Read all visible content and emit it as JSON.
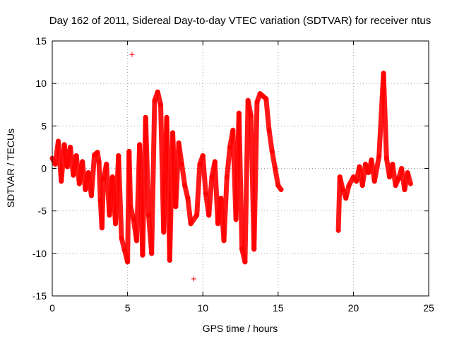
{
  "chart_data": {
    "type": "scatter",
    "title": "Day 162 of 2011, Sidereal Day-to-day VTEC variation (SDTVAR) for receiver ntus",
    "xlabel": "GPS time / hours",
    "ylabel": "SDTVAR / TECUs",
    "xlim": [
      0,
      25
    ],
    "ylim": [
      -15,
      15
    ],
    "xticks": [
      0,
      5,
      10,
      15,
      20,
      25
    ],
    "yticks": [
      -15,
      -10,
      -5,
      0,
      5,
      10,
      15
    ],
    "xtick_labels": [
      "0",
      "5",
      "10",
      "15",
      "20",
      "25"
    ],
    "ytick_labels": [
      "-15",
      "-10",
      "-5",
      "0",
      "5",
      "10",
      "15"
    ],
    "grid": true,
    "marker": "+",
    "color": "#ff0000",
    "series": [
      {
        "name": "ntus",
        "points": [
          [
            0.0,
            1.2
          ],
          [
            0.2,
            0.5
          ],
          [
            0.4,
            3.2
          ],
          [
            0.6,
            -1.5
          ],
          [
            0.8,
            2.8
          ],
          [
            1.0,
            0.2
          ],
          [
            1.2,
            2.5
          ],
          [
            1.4,
            -0.8
          ],
          [
            1.6,
            1.5
          ],
          [
            1.8,
            -1.8
          ],
          [
            2.0,
            0.8
          ],
          [
            2.2,
            -2.5
          ],
          [
            2.4,
            -0.5
          ],
          [
            2.6,
            -3.2
          ],
          [
            2.8,
            1.6
          ],
          [
            3.0,
            1.9
          ],
          [
            3.1,
            0.8
          ],
          [
            3.2,
            -3.8
          ],
          [
            3.3,
            -7.0
          ],
          [
            3.4,
            -1.2
          ],
          [
            3.6,
            0.5
          ],
          [
            3.8,
            -5.5
          ],
          [
            4.0,
            -1.0
          ],
          [
            4.2,
            -6.5
          ],
          [
            4.4,
            1.5
          ],
          [
            4.6,
            -8.2
          ],
          [
            4.8,
            -9.6
          ],
          [
            5.0,
            -11.0
          ],
          [
            5.1,
            2.0
          ],
          [
            5.2,
            -4.5
          ],
          [
            5.3,
            13.4
          ],
          [
            5.4,
            -6.0
          ],
          [
            5.6,
            -8.5
          ],
          [
            5.8,
            2.8
          ],
          [
            6.0,
            -10.2
          ],
          [
            6.2,
            6.0
          ],
          [
            6.4,
            -5.5
          ],
          [
            6.6,
            -10.0
          ],
          [
            6.8,
            8.0
          ],
          [
            7.0,
            9.0
          ],
          [
            7.2,
            7.5
          ],
          [
            7.4,
            -7.5
          ],
          [
            7.6,
            6.0
          ],
          [
            7.8,
            -10.8
          ],
          [
            8.0,
            4.2
          ],
          [
            8.2,
            -4.5
          ],
          [
            8.4,
            3.0
          ],
          [
            8.6,
            0.5
          ],
          [
            8.8,
            -2.0
          ],
          [
            9.0,
            -3.5
          ],
          [
            9.2,
            -6.5
          ],
          [
            9.4,
            -13.0
          ],
          [
            9.6,
            -5.5
          ],
          [
            9.8,
            0.5
          ],
          [
            10.0,
            1.5
          ],
          [
            10.2,
            -3.0
          ],
          [
            10.4,
            -5.5
          ],
          [
            10.6,
            -1.0
          ],
          [
            10.8,
            0.8
          ],
          [
            11.0,
            -6.5
          ],
          [
            11.2,
            -3.5
          ],
          [
            11.4,
            -8.5
          ],
          [
            11.6,
            -1.0
          ],
          [
            11.8,
            2.5
          ],
          [
            12.0,
            4.5
          ],
          [
            12.2,
            -6.0
          ],
          [
            12.4,
            6.5
          ],
          [
            12.6,
            -9.5
          ],
          [
            12.8,
            -11.0
          ],
          [
            13.0,
            8.0
          ],
          [
            13.2,
            6.2
          ],
          [
            13.4,
            -9.5
          ],
          [
            13.6,
            7.8
          ],
          [
            13.8,
            8.8
          ],
          [
            14.0,
            8.5
          ],
          [
            14.2,
            8.2
          ],
          [
            14.4,
            4.5
          ],
          [
            14.6,
            2.0
          ],
          [
            14.8,
            0.0
          ],
          [
            15.0,
            -2.0
          ],
          [
            15.2,
            -2.5
          ],
          [
            19.0,
            -7.3
          ],
          [
            19.1,
            -1.0
          ],
          [
            19.3,
            -2.5
          ],
          [
            19.5,
            -3.5
          ],
          [
            19.7,
            -2.0
          ],
          [
            20.0,
            -1.0
          ],
          [
            20.2,
            -1.5
          ],
          [
            20.4,
            0.2
          ],
          [
            20.6,
            -2.0
          ],
          [
            20.8,
            0.5
          ],
          [
            21.0,
            -0.5
          ],
          [
            21.2,
            1.0
          ],
          [
            21.4,
            -1.5
          ],
          [
            21.7,
            1.4
          ],
          [
            22.0,
            11.2
          ],
          [
            22.2,
            1.2
          ],
          [
            22.4,
            -1.0
          ],
          [
            22.6,
            0.5
          ],
          [
            22.8,
            -2.0
          ],
          [
            23.0,
            -1.2
          ],
          [
            23.2,
            0.0
          ],
          [
            23.4,
            -2.5
          ],
          [
            23.6,
            -0.5
          ],
          [
            23.8,
            -1.8
          ]
        ]
      }
    ]
  }
}
